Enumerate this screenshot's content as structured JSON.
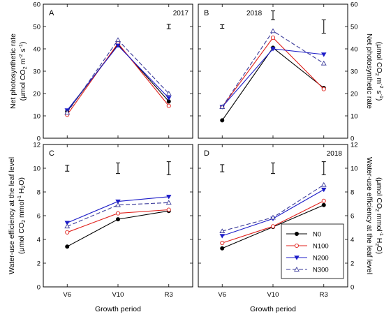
{
  "colors": {
    "N0": "#000000",
    "N100": "#e0201b",
    "N200": "#1c1cc8",
    "N300": "#3a3a9a"
  },
  "chart_data": [
    {
      "panel": "A",
      "year": "2017",
      "type": "line",
      "categories": [
        "V6",
        "V10",
        "R3"
      ],
      "ylim": [
        0,
        60
      ],
      "yticks": [
        0,
        10,
        20,
        30,
        40,
        50,
        60
      ],
      "ylabel": "Net photosynthetic rate (μmol CO2 m-2 s-1)",
      "xlabel": "",
      "series": [
        {
          "name": "N0",
          "values": [
            12,
            42,
            16.5
          ]
        },
        {
          "name": "N100",
          "values": [
            10.5,
            42.5,
            14.5
          ]
        },
        {
          "name": "N200",
          "values": [
            12.5,
            41.5,
            18
          ]
        },
        {
          "name": "N300",
          "values": [
            11.5,
            44,
            20
          ]
        }
      ],
      "error_bars": [
        {
          "category": "R3",
          "center": 50,
          "half": 1
        }
      ]
    },
    {
      "panel": "B",
      "year": "2018",
      "type": "line",
      "categories": [
        "V6",
        "V10",
        "R3"
      ],
      "ylim": [
        0,
        60
      ],
      "yticks": [
        0,
        10,
        20,
        30,
        40,
        50,
        60
      ],
      "ylabel": "Net photosynthetic rate (μmol CO2 m-2 s-1)",
      "xlabel": "",
      "series": [
        {
          "name": "N0",
          "values": [
            8,
            40.5,
            22.5
          ]
        },
        {
          "name": "N100",
          "values": [
            14,
            45,
            22
          ]
        },
        {
          "name": "N200",
          "values": [
            14,
            40,
            37.5
          ]
        },
        {
          "name": "N300",
          "values": [
            14,
            48,
            33.5
          ]
        }
      ],
      "error_bars": [
        {
          "category": "V6",
          "center": 50,
          "half": 0.8
        },
        {
          "category": "V10",
          "center": 55,
          "half": 2
        },
        {
          "category": "R3",
          "center": 50,
          "half": 3
        }
      ]
    },
    {
      "panel": "C",
      "year": "",
      "type": "line",
      "categories": [
        "V6",
        "V10",
        "R3"
      ],
      "ylim": [
        0,
        12
      ],
      "yticks": [
        0,
        2,
        4,
        6,
        8,
        10,
        12
      ],
      "ylabel": "Water-use efficiency at the leaf level (μmol CO2 mmol-1 H2O)",
      "xlabel": "Growth period",
      "series": [
        {
          "name": "N0",
          "values": [
            3.4,
            5.7,
            6.4
          ]
        },
        {
          "name": "N100",
          "values": [
            4.6,
            6.2,
            6.5
          ]
        },
        {
          "name": "N200",
          "values": [
            5.4,
            7.2,
            7.6
          ]
        },
        {
          "name": "N300",
          "values": [
            5.1,
            6.9,
            7.1
          ]
        }
      ],
      "error_bars": [
        {
          "category": "V6",
          "center": 10,
          "half": 0.25
        },
        {
          "category": "V10",
          "center": 10,
          "half": 0.45
        },
        {
          "category": "R3",
          "center": 10,
          "half": 0.55
        }
      ]
    },
    {
      "panel": "D",
      "year": "2018",
      "type": "line",
      "categories": [
        "V6",
        "V10",
        "R3"
      ],
      "ylim": [
        0,
        12
      ],
      "yticks": [
        0,
        2,
        4,
        6,
        8,
        10,
        12
      ],
      "ylabel": "Water-use efficiency at the leaf level (μmol CO2 mmol-1 H2O)",
      "xlabel": "Growth period",
      "series": [
        {
          "name": "N0",
          "values": [
            3.25,
            5.05,
            6.9
          ]
        },
        {
          "name": "N100",
          "values": [
            3.7,
            5.1,
            7.25
          ]
        },
        {
          "name": "N200",
          "values": [
            4.3,
            5.75,
            8.2
          ]
        },
        {
          "name": "N300",
          "values": [
            4.7,
            5.85,
            8.6
          ]
        }
      ],
      "error_bars": [
        {
          "category": "V6",
          "center": 10,
          "half": 0.3
        },
        {
          "category": "V10",
          "center": 10,
          "half": 0.45
        },
        {
          "category": "R3",
          "center": 10,
          "half": 0.55
        }
      ]
    }
  ],
  "legend": [
    "N0",
    "N100",
    "N200",
    "N300"
  ],
  "markers": {
    "N0": "circle-filled",
    "N100": "circle-open",
    "N200": "triangle-down-filled",
    "N300": "triangle-up-open"
  }
}
